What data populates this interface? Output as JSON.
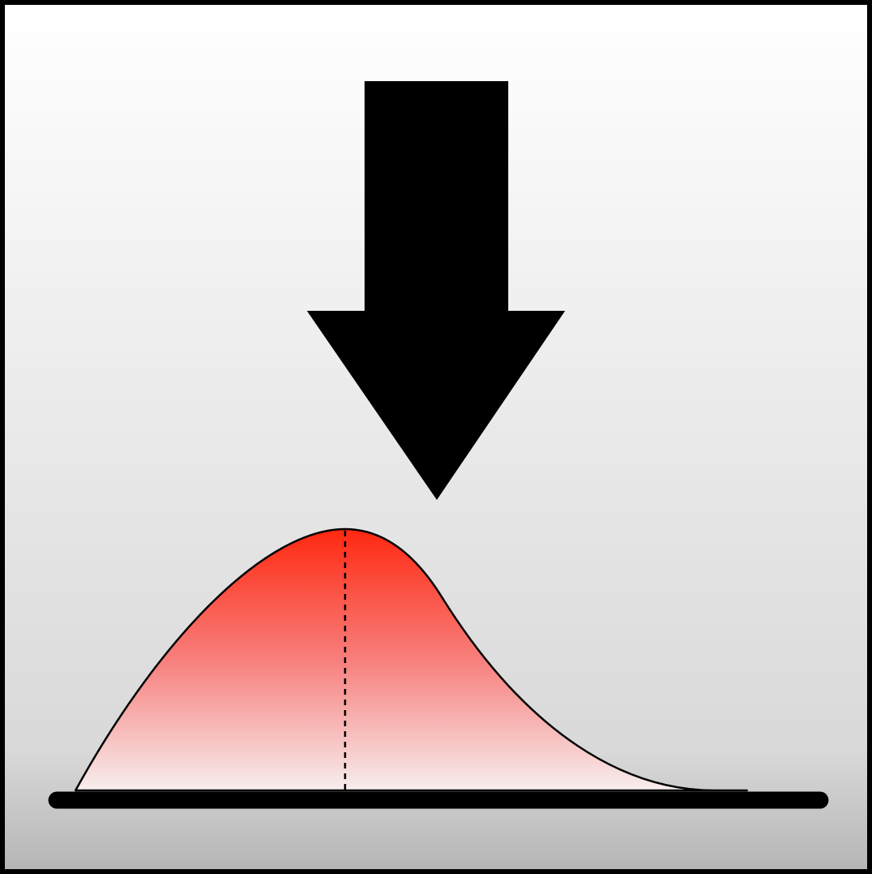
{
  "icon": {
    "name": "distribution-lowering-icon",
    "symbol": "down-arrow",
    "shape": "right-skewed bell curve with mode marker",
    "colors": {
      "border": "#000000",
      "background_top": "#ffffff",
      "background_mid": "#d9d9d9",
      "background_bottom": "#b5b5b5",
      "arrow": "#000000",
      "curve_stroke": "#000000",
      "fill_peak": "#ff2810",
      "fill_base": "#f7eeee",
      "baseline": "#000000",
      "mode_line": "#000000"
    }
  }
}
